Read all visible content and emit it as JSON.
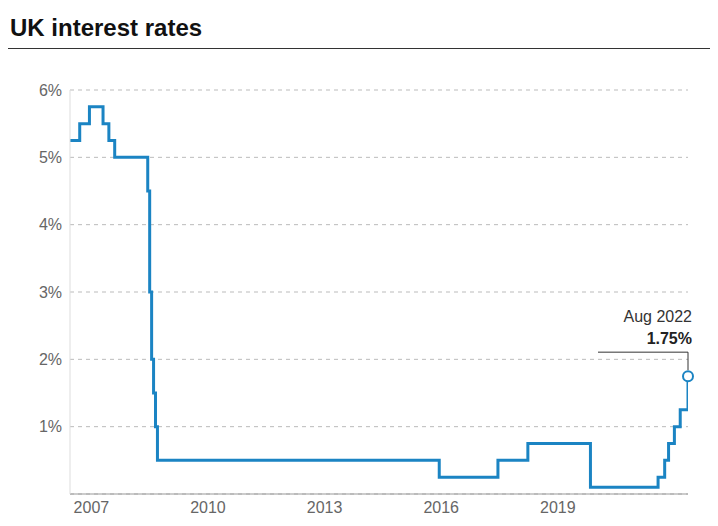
{
  "chart_data": {
    "type": "line",
    "title": "UK interest rates",
    "x": [
      2006.45,
      2006.7,
      2006.95,
      2007.3,
      2007.45,
      2007.6,
      2008.45,
      2008.5,
      2008.55,
      2008.6,
      2008.65,
      2008.7,
      2015.95,
      2017.46,
      2018.23,
      2019.84,
      2021.58,
      2021.75,
      2021.85,
      2022.0,
      2022.15,
      2022.35
    ],
    "values": [
      5.25,
      5.5,
      5.75,
      5.5,
      5.25,
      5.0,
      4.5,
      3.0,
      2.0,
      1.5,
      1.0,
      0.5,
      0.25,
      0.5,
      0.75,
      0.1,
      0.25,
      0.5,
      0.75,
      1.0,
      1.25,
      1.75
    ],
    "color": "#1b84c3",
    "line_style": "step",
    "xlim": [
      2006.45,
      2022.35
    ],
    "xticks": [
      2007,
      2010,
      2013,
      2016,
      2019
    ],
    "ylim": [
      0,
      6
    ],
    "yticks": [
      {
        "value": 1,
        "label": "1%"
      },
      {
        "value": 2,
        "label": "2%"
      },
      {
        "value": 3,
        "label": "3%"
      },
      {
        "value": 4,
        "label": "4%"
      },
      {
        "value": 5,
        "label": "5%"
      },
      {
        "value": 6,
        "label": "6%"
      }
    ],
    "grid": true,
    "annotation": {
      "x": 2022.35,
      "y": 1.75,
      "label": "Aug 2022",
      "value_label": "1.75%"
    }
  }
}
